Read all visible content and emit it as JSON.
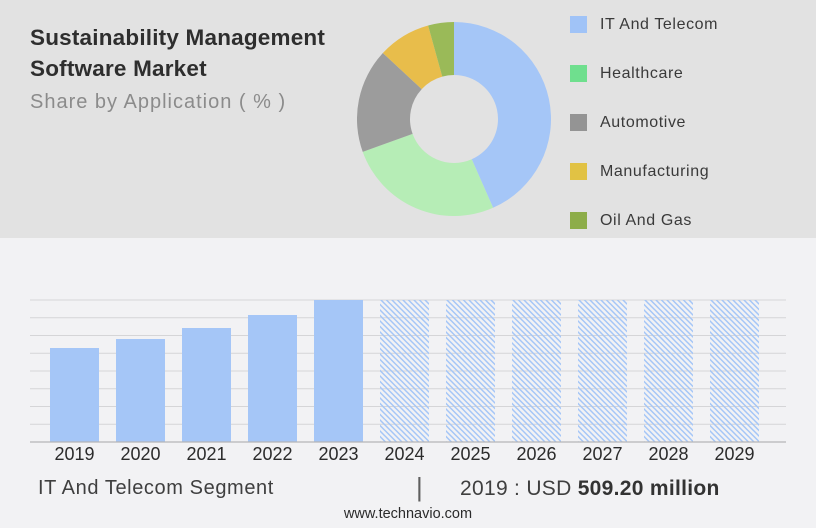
{
  "header": {
    "title_line1": "Sustainability Management",
    "title_line2": "Software Market",
    "subtitle": "Share by Application ( % )"
  },
  "colors": {
    "top_bg": "#e2e2e2",
    "bottom_bg": "#f2f2f4",
    "title": "#2e2e2e",
    "subtitle": "#8b8b8b",
    "legend_text": "#3a3a3a",
    "grid": "#d5d5d7",
    "axis": "#b5b5b7",
    "tick_text": "#2b2b2b",
    "footer_text": "#3f3f3f",
    "footer_bold": "#333333",
    "separator": "#5f5f5f",
    "site_text": "#2b2b2b"
  },
  "chart_data": [
    {
      "type": "pie",
      "donut": true,
      "title": "Share by Application ( % )",
      "legend_position": "right",
      "segments": [
        {
          "label": "IT And Telecom",
          "value": 43.4,
          "color": "#a5c6f7",
          "legend_color": "#a0c3f7"
        },
        {
          "label": "Healthcare",
          "value": 26.1,
          "color": "#b6edb6",
          "legend_color": "#6fdf8e"
        },
        {
          "label": "Automotive",
          "value": 17.4,
          "color": "#9c9c9c",
          "legend_color": "#949494"
        },
        {
          "label": "Manufacturing",
          "value": 8.8,
          "color": "#e8bd4b",
          "legend_color": "#e1c244"
        },
        {
          "label": "Oil And Gas",
          "value": 4.3,
          "color": "#9aba58",
          "legend_color": "#8dad49"
        }
      ]
    },
    {
      "type": "bar",
      "title": "IT And Telecom Segment (USD million)",
      "categories": [
        "2019",
        "2020",
        "2021",
        "2022",
        "2023",
        "2024",
        "2025",
        "2026",
        "2027",
        "2028",
        "2029"
      ],
      "values_rel": [
        0.662,
        0.725,
        0.803,
        0.894,
        1,
        1,
        1,
        1,
        1,
        1,
        1
      ],
      "values_usd_million_est": [
        509.2,
        558,
        618,
        688,
        769,
        null,
        null,
        null,
        null,
        null,
        null
      ],
      "styles": [
        "solid",
        "solid",
        "solid",
        "solid",
        "solid",
        "hatched",
        "hatched",
        "hatched",
        "hatched",
        "hatched",
        "hatched"
      ],
      "labeled_value": {
        "year": "2019",
        "value": "USD 509.20 million"
      },
      "bar_color": "#a5c6f7",
      "hatch_color": "#a5c6f7",
      "grid": true,
      "xlabel": "",
      "ylabel": ""
    }
  ],
  "footer": {
    "segment_label": "IT And Telecom Segment",
    "separator": "|",
    "stat_prefix": "2019 : USD",
    "stat_value": "509.20 million",
    "website": "www.technavio.com"
  }
}
